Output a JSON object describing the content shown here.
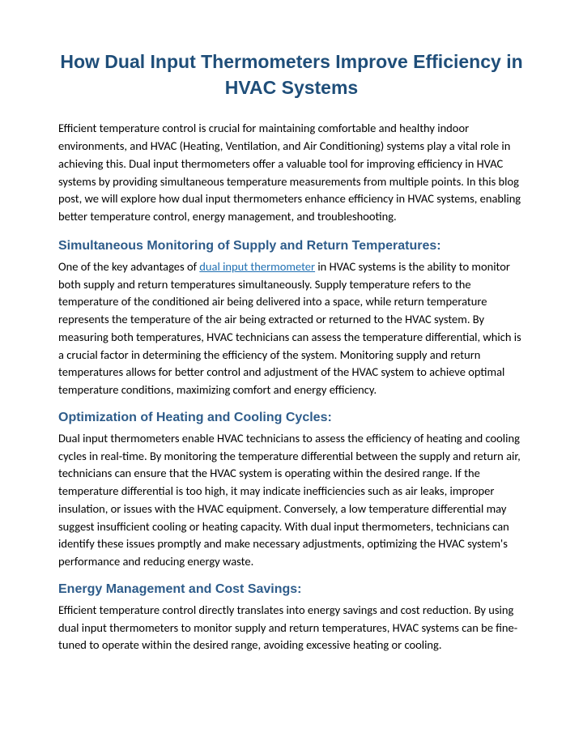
{
  "title": "How Dual Input Thermometers Improve Efficiency in HVAC Systems",
  "intro": "Efficient temperature control is crucial for maintaining comfortable and healthy indoor environments, and HVAC (Heating, Ventilation, and Air Conditioning) systems play a vital role in achieving this. Dual input thermometers offer a valuable tool for improving efficiency in HVAC systems by providing simultaneous temperature measurements from multiple points. In this blog post, we will explore how dual input thermometers enhance efficiency in HVAC systems, enabling better temperature control, energy management, and troubleshooting.",
  "sections": [
    {
      "heading": "Simultaneous Monitoring of Supply and Return Temperatures:",
      "pre_link": "One of the key advantages of ",
      "link_text": "dual input thermometer",
      "post_link": " in HVAC systems is the ability to monitor both supply and return temperatures simultaneously. Supply temperature refers to the temperature of the conditioned air being delivered into a space, while return temperature represents the temperature of the air being extracted or returned to the HVAC system. By measuring both temperatures, HVAC technicians can assess the temperature differential, which is a crucial factor in determining the efficiency of the system. Monitoring supply and return temperatures allows for better control and adjustment of the HVAC system to achieve optimal temperature conditions, maximizing comfort and energy efficiency."
    },
    {
      "heading": "Optimization of Heating and Cooling Cycles:",
      "body": "Dual input thermometers enable HVAC technicians to assess the efficiency of heating and cooling cycles in real-time. By monitoring the temperature differential between the supply and return air, technicians can ensure that the HVAC system is operating within the desired range. If the temperature differential is too high, it may indicate inefficiencies such as air leaks, improper insulation, or issues with the HVAC equipment. Conversely, a low temperature differential may suggest insufficient cooling or heating capacity. With dual input thermometers, technicians can identify these issues promptly and make necessary adjustments, optimizing the HVAC system's performance and reducing energy waste."
    },
    {
      "heading": "Energy Management and Cost Savings:",
      "body": "Efficient temperature control directly translates into energy savings and cost reduction. By using dual input thermometers to monitor supply and return temperatures, HVAC systems can be fine-tuned to operate within the desired range, avoiding excessive heating or cooling."
    }
  ],
  "colors": {
    "title_color": "#1f4e79",
    "heading_color": "#2e5c8a",
    "body_color": "#000000",
    "link_color": "#1f6fb2",
    "background": "#ffffff"
  },
  "typography": {
    "title_fontsize": 23,
    "heading_fontsize": 16,
    "body_fontsize": 14.5,
    "title_font": "Arial",
    "body_font": "Calibri"
  }
}
